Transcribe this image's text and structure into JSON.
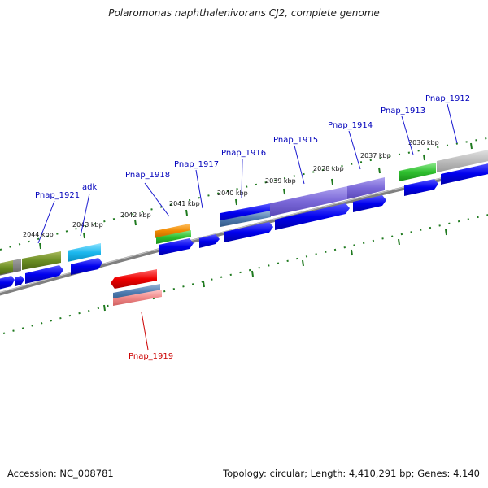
{
  "title": "Polaromonas naphthalenivorans CJ2, complete genome",
  "footer": {
    "accession": "Accession: NC_008781",
    "stats": "Topology: circular; Length: 4,410,291 bp; Genes: 4,140"
  },
  "scale_labels": [
    "2044 kbp",
    "2043 kbp",
    "2042 kbp",
    "2041 kbp",
    "2040 kbp",
    "2039 kbp",
    "2038 kbp",
    "2037 kbp",
    "2036 kbp"
  ],
  "genes": [
    {
      "name": "Pnap_1921",
      "strand": "+"
    },
    {
      "name": "adk",
      "strand": "+"
    },
    {
      "name": "Pnap_1918",
      "strand": "+"
    },
    {
      "name": "Pnap_1917",
      "strand": "+"
    },
    {
      "name": "Pnap_1916",
      "strand": "+"
    },
    {
      "name": "Pnap_1915",
      "strand": "+"
    },
    {
      "name": "Pnap_1914",
      "strand": "+"
    },
    {
      "name": "Pnap_1913",
      "strand": "+"
    },
    {
      "name": "Pnap_1912",
      "strand": "+"
    },
    {
      "name": "Pnap_1919",
      "strand": "-"
    }
  ],
  "colors": {
    "forward_label": "#0000bb",
    "reverse_label": "#cc0000",
    "cds": "#0000ee",
    "backbone": "#777777",
    "ticks": "#1f7a1f"
  }
}
